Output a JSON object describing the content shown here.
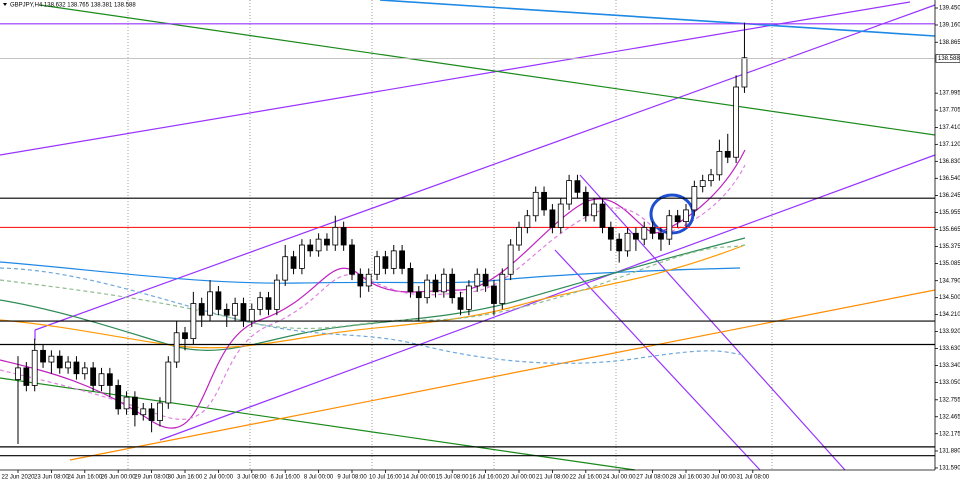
{
  "chart_data": {
    "type": "candlestick",
    "title": "GBPJPY,H4  138.632 138.765 138.381 138.588",
    "current_price": 138.588,
    "up_color": "#ffffff",
    "down_color": "#000000",
    "outline_color": "#000000",
    "categories": [
      "22 Jun 2020",
      null,
      null,
      null,
      "23 Jun 08:00",
      null,
      null,
      null,
      "24 Jun 16:00",
      null,
      null,
      null,
      "26 Jun 00:00",
      null,
      null,
      null,
      "29 Jun 08:00",
      null,
      null,
      null,
      "30 Jun 16:00",
      null,
      null,
      null,
      "2 Jul 00:00",
      null,
      null,
      null,
      "3 Jul 08:00",
      null,
      null,
      null,
      "6 Jul 16:00",
      null,
      null,
      null,
      "8 Jul 00:00",
      null,
      null,
      null,
      "9 Jul 08:00",
      null,
      null,
      null,
      "10 Jul 16:00",
      null,
      null,
      null,
      "14 Jul 00:00",
      null,
      null,
      null,
      "15 Jul 08:00",
      null,
      null,
      null,
      "16 Jul 16:00",
      null,
      null,
      null,
      "20 Jul 00:00",
      null,
      null,
      null,
      "21 Jul 08:00",
      null,
      null,
      null,
      "22 Jul 16:00",
      null,
      null,
      null,
      "24 Jul 00:00",
      null,
      null,
      null,
      "27 Jul 08:00",
      null,
      null,
      null,
      "28 Jul 16:00",
      null,
      null,
      null,
      "30 Jul 00:00",
      null,
      null,
      null,
      "31 Jul 08:00"
    ],
    "ohlc": [
      [
        133.1,
        133.5,
        132.0,
        133.3
      ],
      [
        133.3,
        133.4,
        132.9,
        133.0
      ],
      [
        133.0,
        133.8,
        132.9,
        133.6
      ],
      [
        133.6,
        133.7,
        133.3,
        133.4
      ],
      [
        133.4,
        133.6,
        133.2,
        133.5
      ],
      [
        133.5,
        133.6,
        133.2,
        133.3
      ],
      [
        133.3,
        133.5,
        133.2,
        133.4
      ],
      [
        133.4,
        133.5,
        133.1,
        133.2
      ],
      [
        133.2,
        133.4,
        133.1,
        133.3
      ],
      [
        133.3,
        133.4,
        132.9,
        133.0
      ],
      [
        133.0,
        133.3,
        132.9,
        133.2
      ],
      [
        133.2,
        133.3,
        132.8,
        133.0
      ],
      [
        133.0,
        133.1,
        132.5,
        132.6
      ],
      [
        132.6,
        132.9,
        132.5,
        132.8
      ],
      [
        132.8,
        132.9,
        132.3,
        132.5
      ],
      [
        132.5,
        132.7,
        132.4,
        132.6
      ],
      [
        132.6,
        132.7,
        132.2,
        132.4
      ],
      [
        132.4,
        132.8,
        132.3,
        132.7
      ],
      [
        132.7,
        133.5,
        132.6,
        133.4
      ],
      [
        133.4,
        134.1,
        133.3,
        133.9
      ],
      [
        133.9,
        134.0,
        133.6,
        133.8
      ],
      [
        133.8,
        134.6,
        133.7,
        134.4
      ],
      [
        134.4,
        134.5,
        134.0,
        134.2
      ],
      [
        134.2,
        134.8,
        134.1,
        134.6
      ],
      [
        134.6,
        134.7,
        134.2,
        134.3
      ],
      [
        134.3,
        134.4,
        134.0,
        134.2
      ],
      [
        134.2,
        134.5,
        134.1,
        134.4
      ],
      [
        134.4,
        134.5,
        134.0,
        134.1
      ],
      [
        134.1,
        134.4,
        134.0,
        134.3
      ],
      [
        134.3,
        134.6,
        134.2,
        134.5
      ],
      [
        134.5,
        134.6,
        134.2,
        134.3
      ],
      [
        134.3,
        134.9,
        134.2,
        134.8
      ],
      [
        134.8,
        135.4,
        134.7,
        135.2
      ],
      [
        135.2,
        135.3,
        134.9,
        135.0
      ],
      [
        135.0,
        135.5,
        134.9,
        135.4
      ],
      [
        135.4,
        135.5,
        135.2,
        135.3
      ],
      [
        135.3,
        135.6,
        135.2,
        135.5
      ],
      [
        135.5,
        135.6,
        135.3,
        135.4
      ],
      [
        135.4,
        135.9,
        135.3,
        135.7
      ],
      [
        135.7,
        135.8,
        135.3,
        135.4
      ],
      [
        135.4,
        135.5,
        134.8,
        134.9
      ],
      [
        134.9,
        135.0,
        134.5,
        134.7
      ],
      [
        134.7,
        135.0,
        134.6,
        134.9
      ],
      [
        134.9,
        135.3,
        134.8,
        135.2
      ],
      [
        135.2,
        135.3,
        134.9,
        135.0
      ],
      [
        135.0,
        135.4,
        134.9,
        135.3
      ],
      [
        135.3,
        135.4,
        134.9,
        135.0
      ],
      [
        135.0,
        135.1,
        134.5,
        134.6
      ],
      [
        134.6,
        134.7,
        134.1,
        134.5
      ],
      [
        134.5,
        134.9,
        134.4,
        134.8
      ],
      [
        134.8,
        134.9,
        134.5,
        134.6
      ],
      [
        134.6,
        135.0,
        134.5,
        134.9
      ],
      [
        134.9,
        135.0,
        134.4,
        134.5
      ],
      [
        134.5,
        134.6,
        134.2,
        134.3
      ],
      [
        134.3,
        134.8,
        134.2,
        134.7
      ],
      [
        134.7,
        135.0,
        134.6,
        134.9
      ],
      [
        134.9,
        135.0,
        134.6,
        134.7
      ],
      [
        134.7,
        134.8,
        134.2,
        134.4
      ],
      [
        134.4,
        135.0,
        134.3,
        134.9
      ],
      [
        134.9,
        135.5,
        134.8,
        135.4
      ],
      [
        135.4,
        135.8,
        135.3,
        135.7
      ],
      [
        135.7,
        136.0,
        135.6,
        135.9
      ],
      [
        135.9,
        136.4,
        135.8,
        136.3
      ],
      [
        136.3,
        136.4,
        135.9,
        136.0
      ],
      [
        136.0,
        136.1,
        135.6,
        135.7
      ],
      [
        135.7,
        136.2,
        135.6,
        136.1
      ],
      [
        136.1,
        136.6,
        136.0,
        136.5
      ],
      [
        136.5,
        136.6,
        136.2,
        136.3
      ],
      [
        136.3,
        136.4,
        135.8,
        135.9
      ],
      [
        135.9,
        136.2,
        135.8,
        136.1
      ],
      [
        136.1,
        136.2,
        135.6,
        135.7
      ],
      [
        135.7,
        135.8,
        135.3,
        135.5
      ],
      [
        135.5,
        135.6,
        135.1,
        135.3
      ],
      [
        135.3,
        135.7,
        135.2,
        135.6
      ],
      [
        135.6,
        135.7,
        135.3,
        135.5
      ],
      [
        135.5,
        135.8,
        135.4,
        135.7
      ],
      [
        135.7,
        135.8,
        135.5,
        135.6
      ],
      [
        135.6,
        135.7,
        135.3,
        135.5
      ],
      [
        135.5,
        136.0,
        135.4,
        135.9
      ],
      [
        135.9,
        136.0,
        135.7,
        135.8
      ],
      [
        135.8,
        136.1,
        135.7,
        136.0
      ],
      [
        136.0,
        136.5,
        135.9,
        136.4
      ],
      [
        136.4,
        136.6,
        136.3,
        136.5
      ],
      [
        136.5,
        136.7,
        136.4,
        136.6
      ],
      [
        136.6,
        137.2,
        136.5,
        137.0
      ],
      [
        137.0,
        137.3,
        136.8,
        136.9
      ],
      [
        136.9,
        138.3,
        136.8,
        138.1
      ],
      [
        138.1,
        139.2,
        138.0,
        138.6
      ],
      null
    ],
    "levels": [
      {
        "price": 139.18,
        "color": "#9933ff"
      },
      {
        "price": 136.2,
        "color": "#000000"
      },
      {
        "price": 135.7,
        "color": "#ff2020"
      },
      {
        "price": 134.1,
        "color": "#000000"
      },
      {
        "price": 133.7,
        "color": "#000000"
      },
      {
        "price": 131.95,
        "color": "#000000"
      },
      {
        "price": 131.8,
        "color": "#000000"
      }
    ],
    "ylim": [
      131.555,
      139.587
    ],
    "yticks": [
      {
        "value": 139.45,
        "label": "139.450"
      },
      {
        "value": 139.16,
        "label": "139.160"
      },
      138.865,
      137.995,
      137.705,
      {
        "value": 137.41,
        "label": "137.410"
      },
      {
        "value": 137.12,
        "label": "137.120"
      },
      {
        "value": 136.83,
        "label": "136.830"
      },
      {
        "value": 136.54,
        "label": "136.540"
      },
      136.245,
      135.955,
      135.665,
      135.375,
      135.085,
      {
        "value": 134.79,
        "label": "134.790"
      },
      {
        "value": 134.5,
        "label": "134.500"
      },
      {
        "value": 134.21,
        "label": "134.210"
      },
      {
        "value": 133.92,
        "label": "133.920"
      },
      {
        "value": 133.63,
        "label": "133.630"
      },
      {
        "value": 133.34,
        "label": "133.340"
      },
      {
        "value": 133.05,
        "label": "133.050"
      },
      132.755,
      132.465,
      132.175,
      {
        "value": 131.88,
        "label": "131.880"
      },
      {
        "value": 131.59,
        "label": "131.590"
      }
    ]
  }
}
